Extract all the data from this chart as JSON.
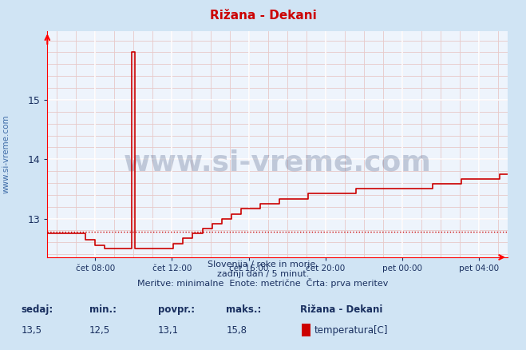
{
  "title": "Rižana - Dekani",
  "background_color": "#d0e4f4",
  "plot_bg_color": "#eef4fc",
  "line_color": "#cc0000",
  "grid_major_color": "#ffffff",
  "grid_minor_color": "#e8c8c8",
  "xlim_hours": [
    5.5,
    29.5
  ],
  "ylim": [
    12.35,
    16.15
  ],
  "yticks": [
    13,
    14,
    15
  ],
  "xtick_labels": [
    "čet 08:00",
    "čet 12:00",
    "čet 16:00",
    "čet 20:00",
    "pet 00:00",
    "pet 04:00"
  ],
  "xtick_positions": [
    8,
    12,
    16,
    20,
    24,
    28
  ],
  "dashed_line_y": 12.78,
  "watermark_text": "www.si-vreme.com",
  "watermark_color": "#1a3060",
  "subtitle1": "Slovenija / reke in morje.",
  "subtitle2": "zadnji dan / 5 minut.",
  "subtitle3": "Meritve: minimalne  Enote: metrične  Črta: prva meritev",
  "legend_station": "Rižana - Dekani",
  "legend_label": "temperatura[C]",
  "legend_color": "#cc0000",
  "stats_labels": [
    "sedaj:",
    "min.:",
    "povpr.:",
    "maks.:"
  ],
  "stats_values": [
    "13,5",
    "12,5",
    "13,1",
    "15,8"
  ],
  "left_watermark": "www.si-vreme.com",
  "left_watermark_color": "#3060a0"
}
